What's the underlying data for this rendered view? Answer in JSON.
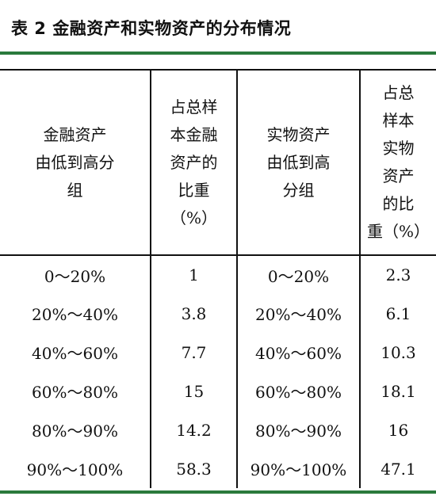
{
  "title": "表 2  金融资产和实物资产的分布情况",
  "headers": [
    {
      "lines": [
        "金融资产",
        "由低到高分",
        "组"
      ]
    },
    {
      "lines": [
        "占总样",
        "本金融",
        "资产的",
        "比重",
        "（%）"
      ]
    },
    {
      "lines": [
        "实物资产",
        "由低到高",
        "分组"
      ]
    },
    {
      "lines": [
        "占总",
        "样本",
        "实物",
        "资产",
        "的比",
        "重（%）"
      ]
    }
  ],
  "rows": [
    [
      "0～20%",
      "1",
      "0～20%",
      "2.3"
    ],
    [
      "20%～40%",
      "3.8",
      "20%～40%",
      "6.1"
    ],
    [
      "40%～60%",
      "7.7",
      "40%～60%",
      "10.3"
    ],
    [
      "60%～80%",
      "15",
      "60%～80%",
      "18.1"
    ],
    [
      "80%～90%",
      "14.2",
      "80%～90%",
      "16"
    ],
    [
      "90%～100%",
      "58.3",
      "90%～100%",
      "47.1"
    ]
  ],
  "colors": {
    "accent_rule": "#2a7a3c"
  }
}
